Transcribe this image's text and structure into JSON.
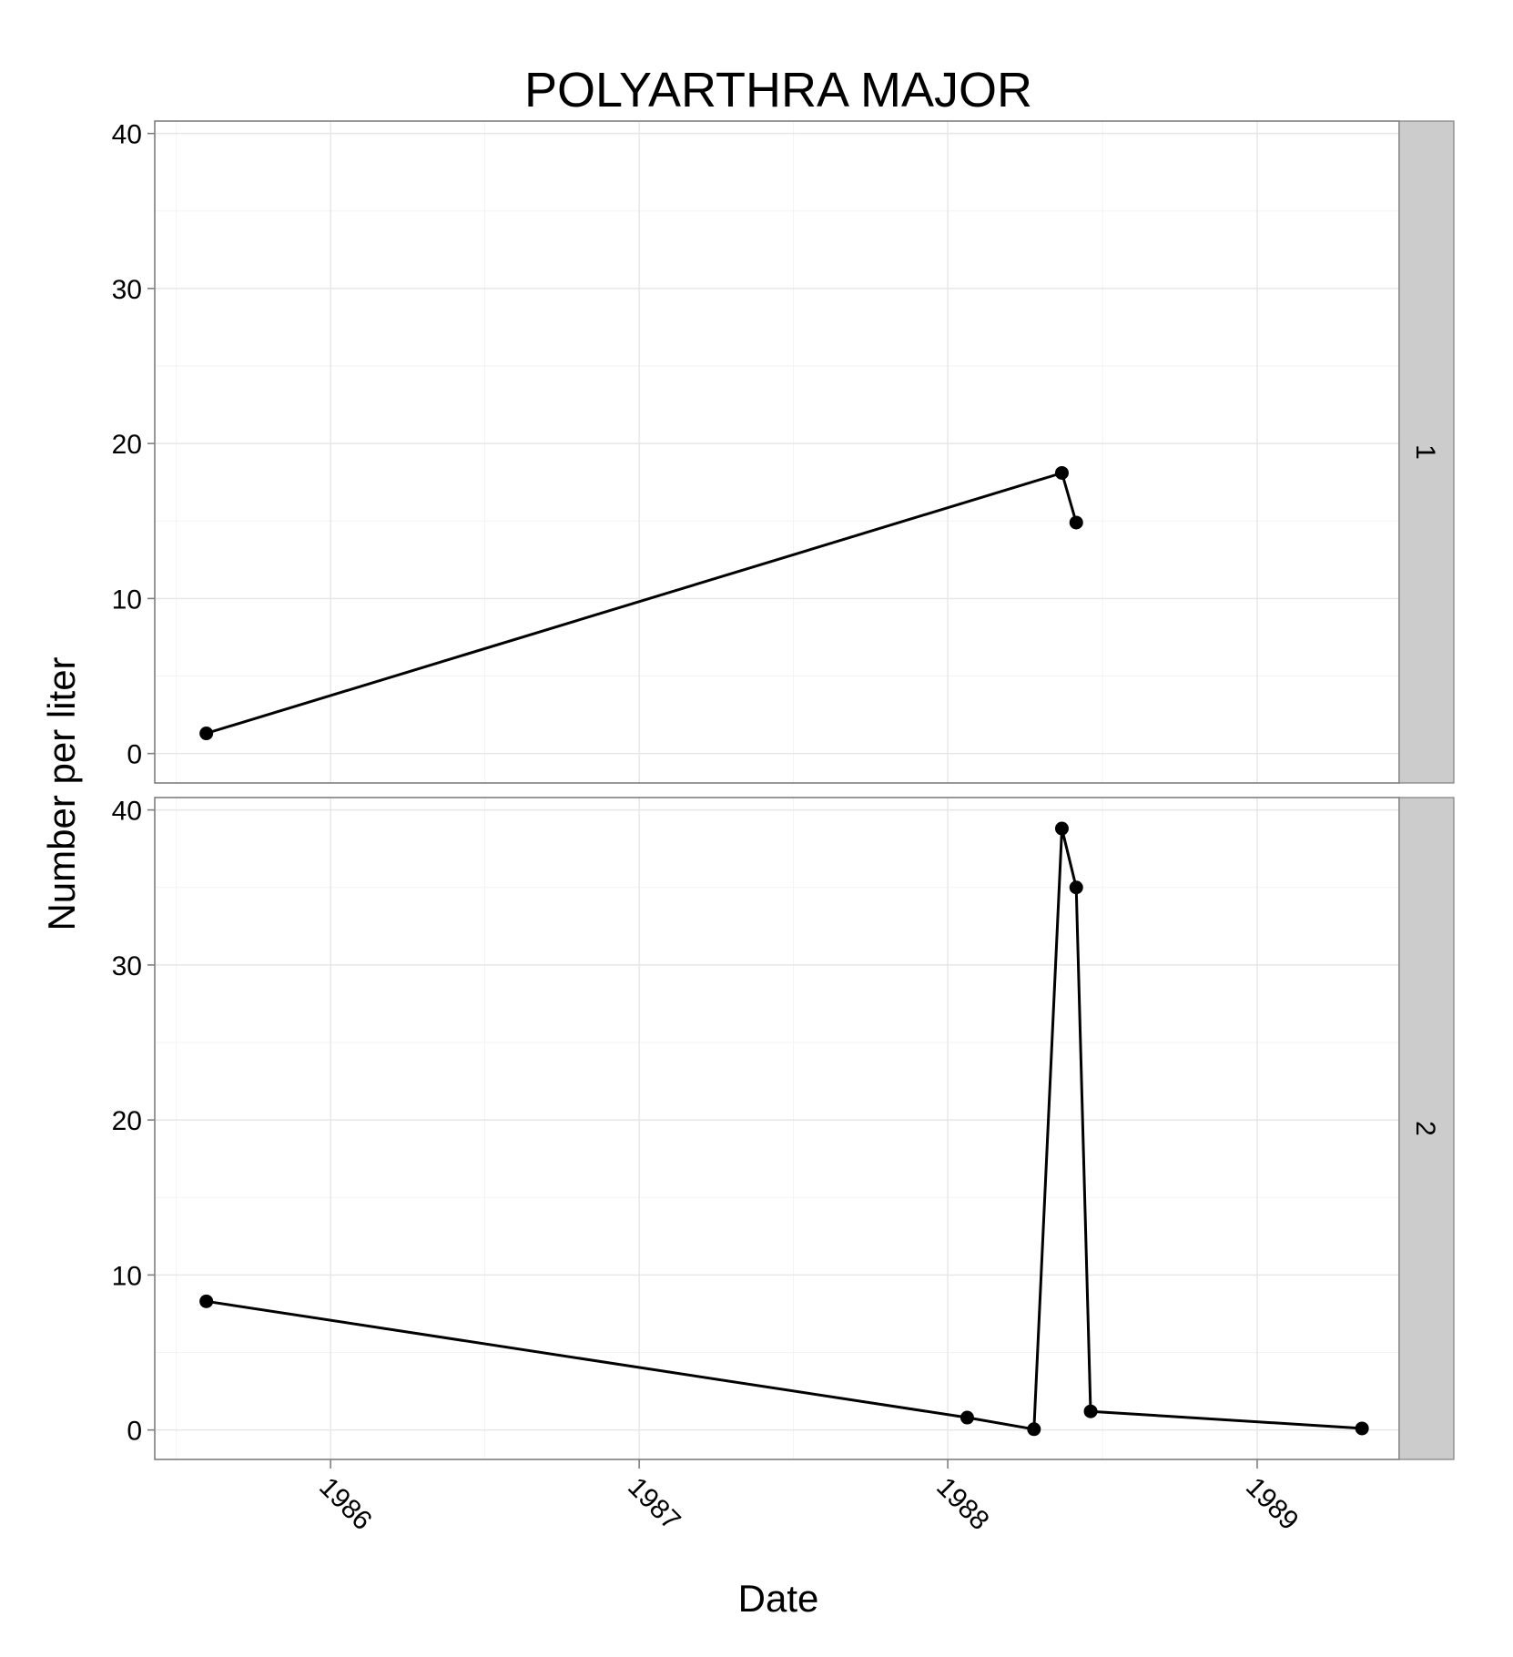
{
  "chart_data": {
    "type": "line",
    "title": "POLYARTHRA MAJOR",
    "xlabel": "Date",
    "ylabel": "Number per liter",
    "x_ticks": [
      "1986",
      "1987",
      "1988",
      "1989"
    ],
    "y_ticks": [
      0,
      10,
      20,
      30,
      40
    ],
    "ylim": [
      -1.9,
      40.8
    ],
    "xlim": [
      "1985-06-07",
      "1989-06-18"
    ],
    "grid": true,
    "line_color": "#000000",
    "strip_color": "#cccccc",
    "panels": [
      {
        "label": "1",
        "points": [
          {
            "x": "1985-08-07",
            "y": 1.3
          },
          {
            "x": "1988-05-15",
            "y": 18.1
          },
          {
            "x": "1988-06-01",
            "y": 14.9
          }
        ]
      },
      {
        "label": "2",
        "points": [
          {
            "x": "1985-08-07",
            "y": 8.3
          },
          {
            "x": "1988-01-24",
            "y": 0.8
          },
          {
            "x": "1988-04-12",
            "y": 0.05
          },
          {
            "x": "1988-05-15",
            "y": 38.8
          },
          {
            "x": "1988-06-01",
            "y": 35.0
          },
          {
            "x": "1988-06-18",
            "y": 1.2
          },
          {
            "x": "1989-05-05",
            "y": 0.1
          }
        ]
      }
    ]
  }
}
